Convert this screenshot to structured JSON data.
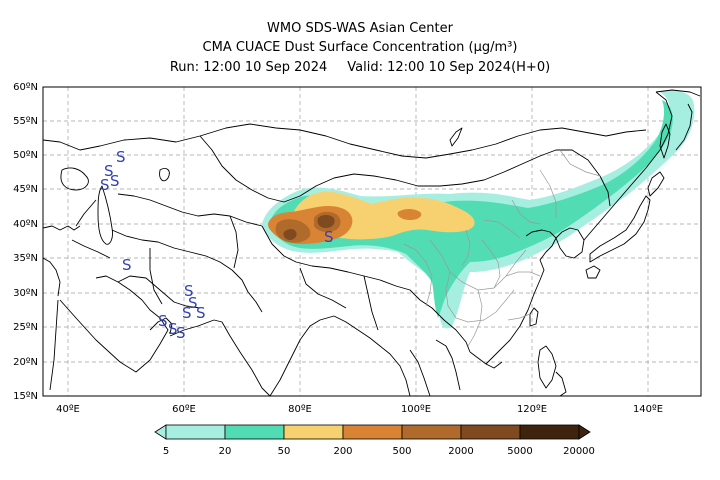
{
  "header": {
    "line1": "WMO SDS-WAS Asian Center",
    "line2": "CMA CUACE Dust Surface Concentration (μg/m³)",
    "run": "Run: 12:00 10 Sep 2024",
    "valid": "Valid: 12:00 10 Sep 2024(H+0)"
  },
  "map": {
    "lat_labels": [
      "60ºN",
      "55ºN",
      "50ºN",
      "45ºN",
      "40ºN",
      "35ºN",
      "30ºN",
      "25ºN",
      "20ºN",
      "15ºN"
    ],
    "lon_labels": [
      "40ºE",
      "60ºE",
      "80ºE",
      "100ºE",
      "120ºE",
      "140ºE"
    ],
    "dust_storm_symbol": "S",
    "dust_storm_symbol_count_shown": 13
  },
  "legend": {
    "values": [
      "5",
      "20",
      "50",
      "200",
      "500",
      "2000",
      "5000",
      "20000"
    ],
    "colors": [
      "#a6eee0",
      "#52dcb4",
      "#f7d16f",
      "#d98434",
      "#b06a2c",
      "#7f4a20",
      "#3e240e"
    ]
  },
  "colors": {
    "land_outline": "#000000",
    "province_outline": "#9a9a9a",
    "grid": "#9a9a9a",
    "symbol": "#3342b5"
  }
}
